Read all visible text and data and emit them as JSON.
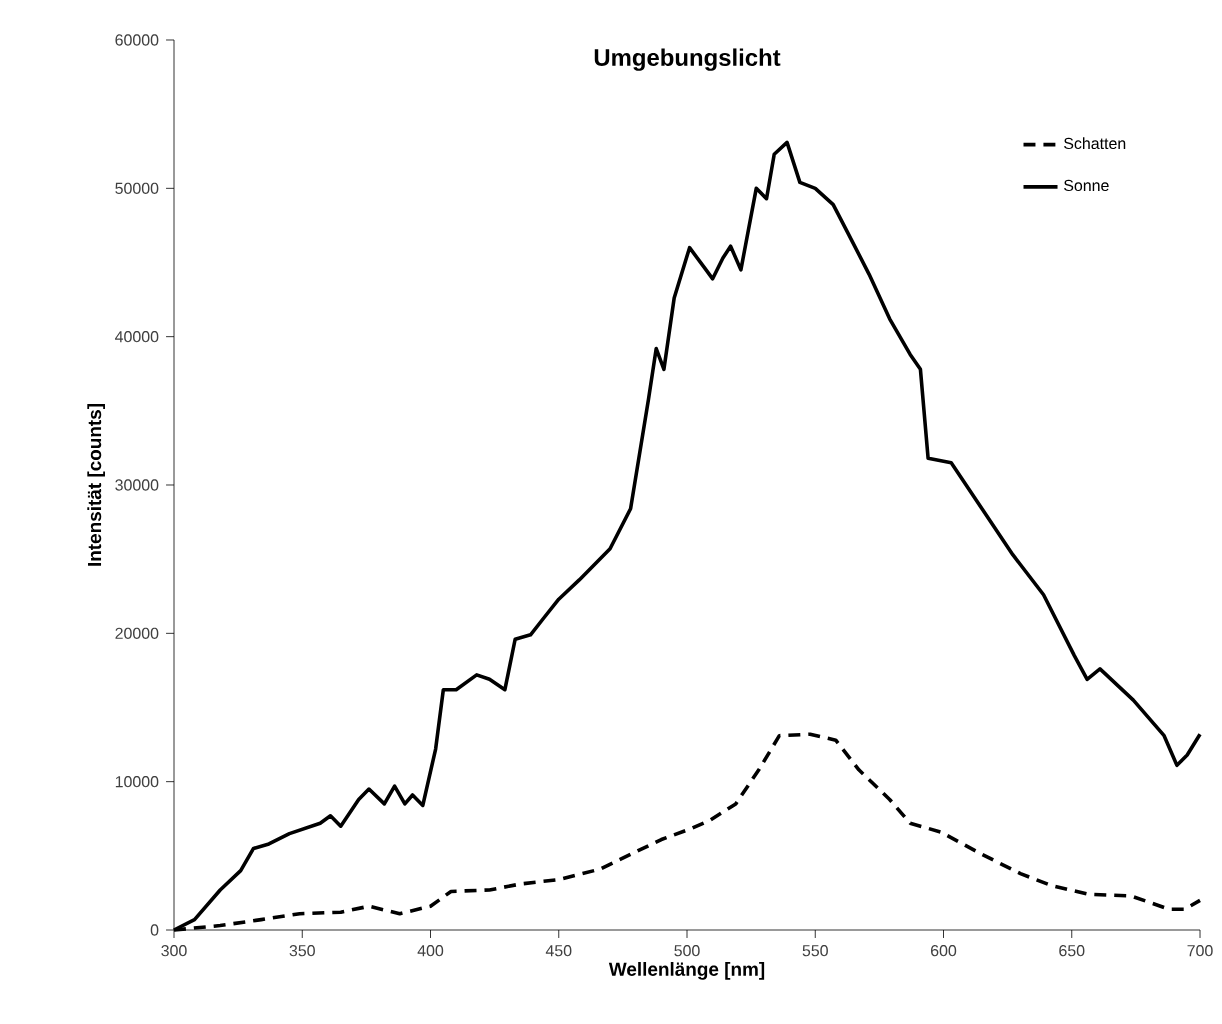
{
  "chart_data": {
    "type": "line",
    "title": "Umgebungslicht",
    "xlabel": "Wellenlänge [nm]",
    "ylabel": "Intensität [counts]",
    "xlim": [
      300,
      700
    ],
    "ylim": [
      0,
      60000
    ],
    "xticks": [
      300,
      350,
      400,
      450,
      500,
      550,
      600,
      650,
      700
    ],
    "yticks": [
      0,
      10000,
      20000,
      30000,
      40000,
      50000,
      60000
    ],
    "grid": false,
    "legend": "top right",
    "marker": "none",
    "series": [
      {
        "name": "Schatten",
        "color": "#000000",
        "line_style": "dashed",
        "x": [
          300,
          318,
          334,
          349,
          365,
          376,
          388,
          400,
          408,
          423,
          435,
          450,
          466,
          478,
          490,
          501,
          509,
          519,
          528,
          536,
          548,
          558,
          567,
          579,
          587,
          599,
          615,
          630,
          642,
          657,
          673,
          688,
          694,
          700
        ],
        "values": [
          0,
          300,
          700,
          1100,
          1200,
          1600,
          1100,
          1600,
          2600,
          2700,
          3100,
          3400,
          4100,
          5100,
          6100,
          6800,
          7400,
          8500,
          10800,
          13100,
          13200,
          12800,
          10800,
          8800,
          7200,
          6600,
          5100,
          3800,
          3000,
          2400,
          2300,
          1400,
          1400,
          2000
        ]
      },
      {
        "name": "Sonne",
        "color": "#000000",
        "line_style": "solid",
        "x": [
          300,
          308,
          318,
          326,
          331,
          337,
          345,
          357,
          361,
          365,
          372,
          376,
          382,
          386,
          390,
          393,
          397,
          402,
          405,
          410,
          418,
          423,
          429,
          433,
          439,
          444,
          450,
          458,
          470,
          478,
          485,
          488,
          491,
          495,
          501,
          507,
          510,
          514,
          517,
          521,
          527,
          531,
          534,
          539,
          544,
          550,
          557,
          563,
          571,
          579,
          587,
          591,
          594,
          603,
          615,
          627,
          639,
          651,
          656,
          661,
          674,
          686,
          691,
          695,
          700
        ],
        "values": [
          0,
          700,
          2700,
          4000,
          5500,
          5800,
          6500,
          7200,
          7700,
          7000,
          8800,
          9500,
          8500,
          9700,
          8500,
          9100,
          8400,
          12200,
          16200,
          16200,
          17200,
          16900,
          16200,
          19600,
          19900,
          21000,
          22300,
          23600,
          25700,
          28400,
          35800,
          39200,
          37800,
          42600,
          46000,
          44600,
          43900,
          45300,
          46100,
          44500,
          50000,
          49300,
          52300,
          53100,
          50400,
          50000,
          48900,
          46900,
          44200,
          41200,
          38800,
          37800,
          31800,
          31500,
          28400,
          25300,
          22600,
          18500,
          16900,
          17600,
          15500,
          13100,
          11100,
          11800,
          13200
        ]
      }
    ]
  }
}
